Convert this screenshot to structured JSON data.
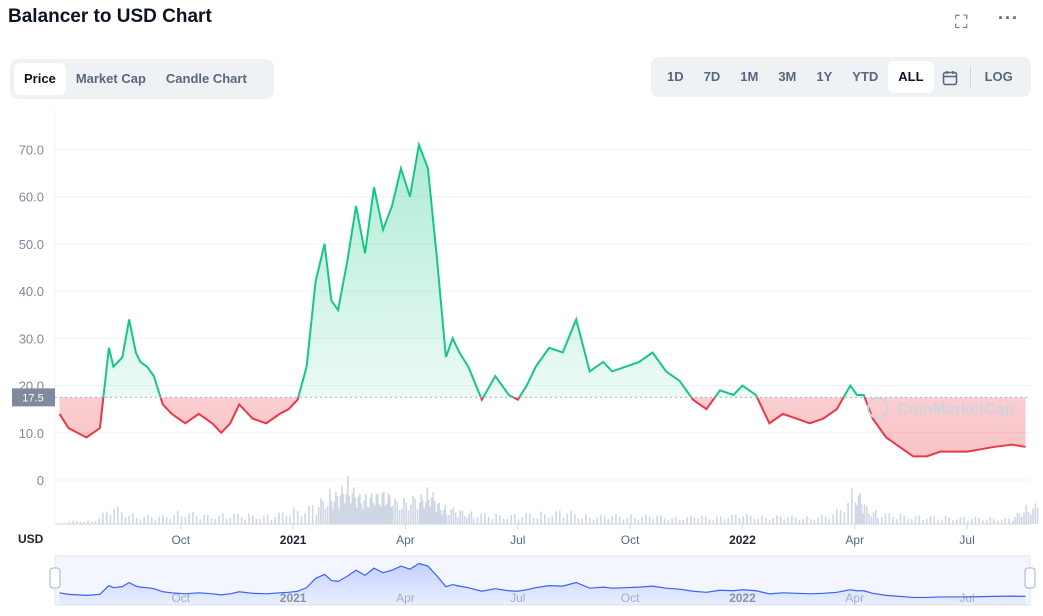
{
  "page": {
    "title": "Balancer to USD Chart",
    "icons": {
      "fullscreen": "fullscreen-icon",
      "more": "more-icon",
      "calendar": "calendar-icon"
    }
  },
  "tabs": [
    {
      "label": "Price",
      "active": true
    },
    {
      "label": "Market Cap",
      "active": false
    },
    {
      "label": "Candle Chart",
      "active": false
    }
  ],
  "ranges": [
    {
      "label": "1D",
      "active": false
    },
    {
      "label": "7D",
      "active": false
    },
    {
      "label": "1M",
      "active": false
    },
    {
      "label": "3M",
      "active": false
    },
    {
      "label": "1Y",
      "active": false
    },
    {
      "label": "YTD",
      "active": false
    },
    {
      "label": "ALL",
      "active": true
    }
  ],
  "log_label": "LOG",
  "watermark": "CoinMarketCap",
  "currency_label": "USD",
  "colors": {
    "up": "#16c784",
    "down": "#ea3943",
    "volume": "#cfd6e4",
    "navigator": "#3861fb"
  },
  "chart_data": {
    "type": "line",
    "baseline": 17.5,
    "baseline_label": "17.5",
    "y_ticks": [
      "70.0",
      "60.0",
      "50.0",
      "40.0",
      "30.0",
      "20.0",
      "10.0",
      "0"
    ],
    "ylim": [
      0,
      72
    ],
    "x_ticks": [
      {
        "label": "Oct",
        "x": 2020.75,
        "major": false
      },
      {
        "label": "2021",
        "x": 2021.0,
        "major": true
      },
      {
        "label": "Apr",
        "x": 2021.25,
        "major": false
      },
      {
        "label": "Jul",
        "x": 2021.5,
        "major": false
      },
      {
        "label": "Oct",
        "x": 2021.75,
        "major": false
      },
      {
        "label": "2022",
        "x": 2022.0,
        "major": true
      },
      {
        "label": "Apr",
        "x": 2022.25,
        "major": false
      },
      {
        "label": "Jul",
        "x": 2022.5,
        "major": false
      }
    ],
    "series": [
      {
        "x": [
          2020.48,
          2020.5,
          2020.52,
          2020.54,
          2020.555,
          2020.57,
          2020.59,
          2020.6,
          2020.62,
          2020.635,
          2020.65,
          2020.66,
          2020.675,
          2020.69,
          2020.71,
          2020.73,
          2020.76,
          2020.79,
          2020.82,
          2020.84,
          2020.86,
          2020.88,
          2020.91,
          2020.94,
          2020.97,
          2020.99,
          2021.01,
          2021.03,
          2021.05,
          2021.07,
          2021.085,
          2021.1,
          2021.12,
          2021.14,
          2021.16,
          2021.18,
          2021.2,
          2021.22,
          2021.24,
          2021.26,
          2021.28,
          2021.3,
          2021.32,
          2021.34,
          2021.355,
          2021.37,
          2021.39,
          2021.42,
          2021.45,
          2021.48,
          2021.5,
          2021.52,
          2021.54,
          2021.57,
          2021.6,
          2021.63,
          2021.66,
          2021.69,
          2021.71,
          2021.74,
          2021.77,
          2021.8,
          2021.83,
          2021.86,
          2021.89,
          2021.92,
          2021.95,
          2021.98,
          2022.0,
          2022.03,
          2022.06,
          2022.09,
          2022.12,
          2022.15,
          2022.18,
          2022.21,
          2022.24,
          2022.255,
          2022.27,
          2022.29,
          2022.32,
          2022.35,
          2022.38,
          2022.41,
          2022.44,
          2022.47,
          2022.5,
          2022.53,
          2022.56,
          2022.6,
          2022.63
        ],
        "y": [
          14,
          11,
          10,
          9,
          10,
          11,
          28,
          24,
          26,
          34,
          27,
          25,
          24,
          22,
          16,
          14,
          12,
          14,
          12,
          10,
          12,
          16,
          13,
          12,
          14,
          15,
          17,
          24,
          42,
          50,
          38,
          36,
          46,
          58,
          48,
          62,
          53,
          58,
          66,
          60,
          71,
          66,
          47,
          26,
          30,
          27,
          24,
          17,
          22,
          18,
          17,
          20,
          24,
          28,
          27,
          34,
          23,
          25,
          23,
          24,
          25,
          27,
          23,
          21,
          17,
          15,
          19,
          18,
          20,
          18,
          12,
          14,
          13,
          12,
          13,
          15,
          20,
          18,
          18,
          13,
          9,
          7,
          5,
          5,
          6,
          6,
          6,
          6.5,
          7,
          7.5,
          7
        ]
      }
    ],
    "volume": {
      "x": [
        2020.5,
        2020.55,
        2020.6,
        2020.65,
        2020.7,
        2020.75,
        2020.8,
        2020.85,
        2020.9,
        2020.95,
        2021.0,
        2021.05,
        2021.08,
        2021.1,
        2021.12,
        2021.14,
        2021.16,
        2021.18,
        2021.2,
        2021.22,
        2021.25,
        2021.28,
        2021.3,
        2021.32,
        2021.34,
        2021.37,
        2021.4,
        2021.45,
        2021.5,
        2021.55,
        2021.6,
        2021.65,
        2021.7,
        2021.75,
        2021.8,
        2021.85,
        2021.9,
        2021.95,
        2022.0,
        2022.05,
        2022.1,
        2022.15,
        2022.2,
        2022.25,
        2022.27,
        2022.3,
        2022.35,
        2022.4,
        2022.45,
        2022.5,
        2022.55,
        2022.6,
        2022.63
      ],
      "v": [
        3,
        4,
        18,
        10,
        8,
        14,
        9,
        11,
        10,
        9,
        16,
        20,
        35,
        30,
        50,
        28,
        34,
        28,
        40,
        24,
        30,
        26,
        40,
        22,
        18,
        14,
        12,
        10,
        10,
        12,
        14,
        10,
        9,
        10,
        9,
        8,
        8,
        9,
        10,
        9,
        8,
        8,
        10,
        40,
        20,
        12,
        10,
        8,
        8,
        7,
        7,
        6,
        20
      ],
      "vmax": 60
    },
    "xlim": [
      2020.47,
      2022.64
    ]
  }
}
